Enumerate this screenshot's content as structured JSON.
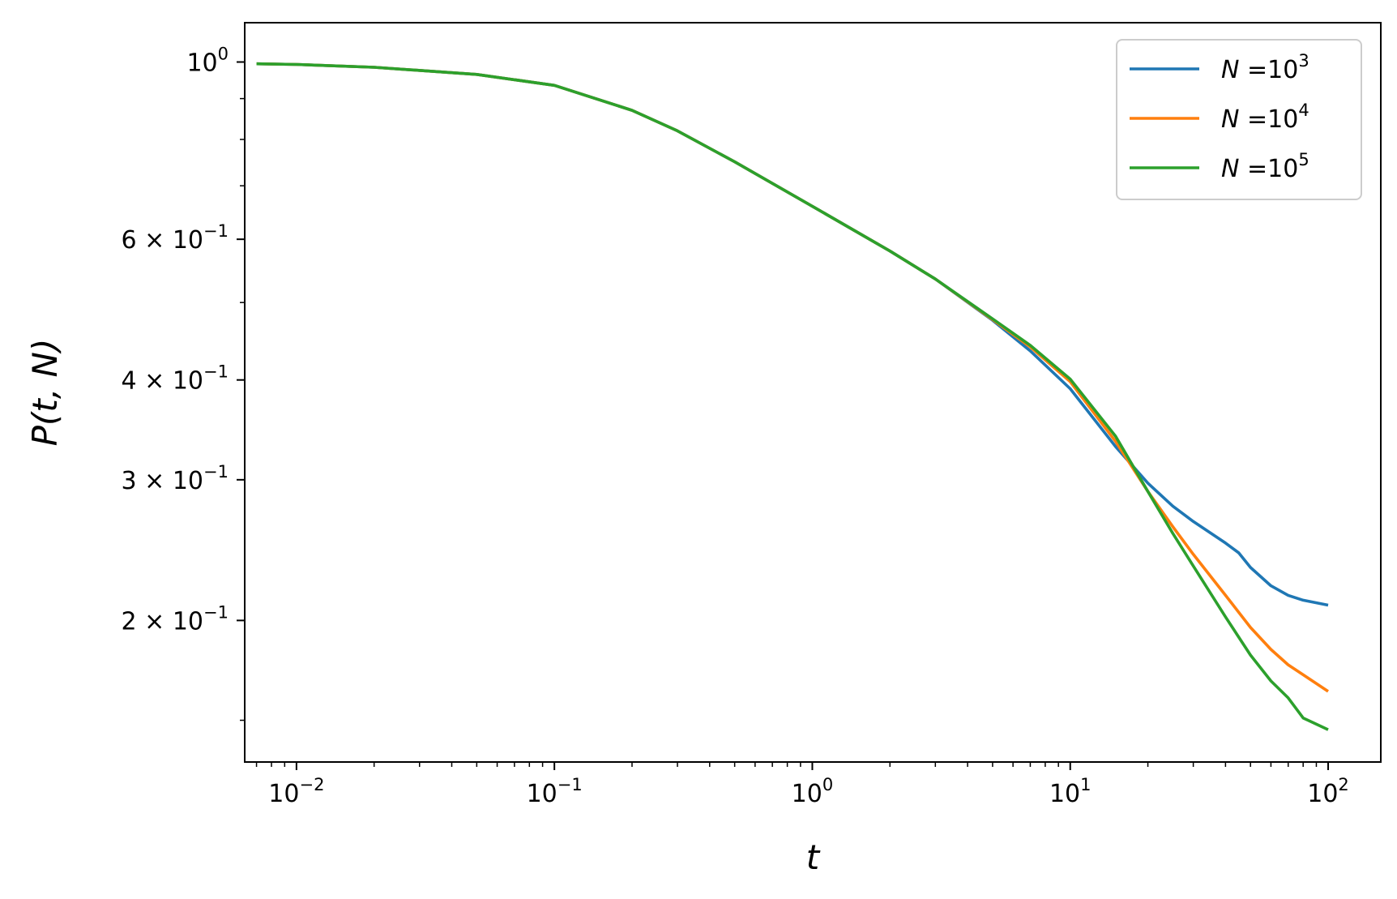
{
  "chart_data": {
    "type": "line",
    "title": "",
    "xlabel": "t",
    "ylabel": "P(t, N)",
    "xscale": "log",
    "yscale": "log",
    "xlim": [
      0.0063,
      160
    ],
    "ylim": [
      0.133,
      1.12
    ],
    "grid": false,
    "legend_position": "top-right",
    "x_ticks": [
      {
        "value": 0.01,
        "base": "10",
        "exp": "−2"
      },
      {
        "value": 0.1,
        "base": "10",
        "exp": "−1"
      },
      {
        "value": 1,
        "base": "10",
        "exp": "0"
      },
      {
        "value": 10,
        "base": "10",
        "exp": "1"
      },
      {
        "value": 100,
        "base": "10",
        "exp": "2"
      }
    ],
    "y_ticks": [
      {
        "value": 1.0,
        "mant": "",
        "base": "10",
        "exp": "0"
      },
      {
        "value": 0.6,
        "mant": "6 × ",
        "base": "10",
        "exp": "−1"
      },
      {
        "value": 0.4,
        "mant": "4 × ",
        "base": "10",
        "exp": "−1"
      },
      {
        "value": 0.3,
        "mant": "3 × ",
        "base": "10",
        "exp": "−1"
      },
      {
        "value": 0.2,
        "mant": "2 × ",
        "base": "10",
        "exp": "−1"
      }
    ],
    "series": [
      {
        "name": "N =10^3",
        "legend_var": "N",
        "legend_eq": " =10",
        "legend_exp": "3",
        "color": "#1f77b4",
        "x": [
          0.007,
          0.01,
          0.02,
          0.05,
          0.1,
          0.2,
          0.3,
          0.5,
          1,
          2,
          3,
          5,
          7,
          10,
          15,
          20,
          25,
          30,
          40,
          45,
          50,
          60,
          70,
          80,
          100
        ],
        "y": [
          0.995,
          0.993,
          0.985,
          0.965,
          0.935,
          0.87,
          0.82,
          0.75,
          0.66,
          0.58,
          0.535,
          0.475,
          0.435,
          0.39,
          0.33,
          0.297,
          0.278,
          0.266,
          0.25,
          0.243,
          0.233,
          0.221,
          0.215,
          0.212,
          0.209
        ]
      },
      {
        "name": "N =10^4",
        "legend_var": "N",
        "legend_eq": " =10",
        "legend_exp": "4",
        "color": "#ff7f0e",
        "x": [
          0.007,
          0.01,
          0.02,
          0.05,
          0.1,
          0.2,
          0.3,
          0.5,
          1,
          2,
          3,
          5,
          7,
          10,
          15,
          20,
          25,
          30,
          40,
          50,
          60,
          70,
          80,
          100
        ],
        "y": [
          0.995,
          0.993,
          0.985,
          0.965,
          0.935,
          0.87,
          0.82,
          0.75,
          0.66,
          0.58,
          0.535,
          0.476,
          0.44,
          0.398,
          0.335,
          0.29,
          0.262,
          0.242,
          0.215,
          0.196,
          0.184,
          0.176,
          0.171,
          0.163
        ]
      },
      {
        "name": "N =10^5",
        "legend_var": "N",
        "legend_eq": " =10",
        "legend_exp": "5",
        "color": "#2ca02c",
        "x": [
          0.007,
          0.01,
          0.02,
          0.05,
          0.1,
          0.2,
          0.3,
          0.5,
          1,
          2,
          3,
          5,
          7,
          10,
          15,
          20,
          25,
          30,
          40,
          50,
          60,
          70,
          80,
          100
        ],
        "y": [
          0.995,
          0.993,
          0.985,
          0.965,
          0.935,
          0.87,
          0.82,
          0.75,
          0.66,
          0.58,
          0.535,
          0.477,
          0.442,
          0.401,
          0.34,
          0.29,
          0.257,
          0.234,
          0.202,
          0.181,
          0.168,
          0.16,
          0.151,
          0.146
        ]
      }
    ]
  }
}
